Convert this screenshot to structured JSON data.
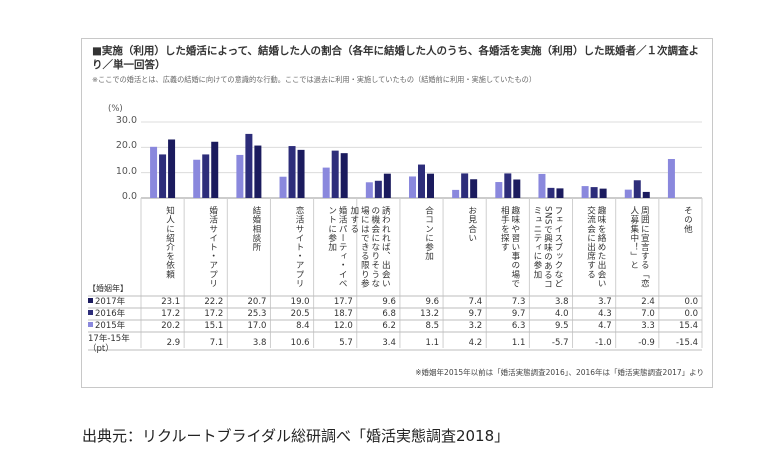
{
  "title": "■実施（利用）した婚活によって、結婚した人の割合（各年に結婚した人のうち、各婚活を実施（利用）した既婚者／１次調査より／単一回答）",
  "note": "※ここでの婚活とは、広義の結婚に向けての意識的な行動。ここでは過去に利用・実施していたもの（結婚前に利用・実施していたもの）",
  "unit_label": "(%)",
  "year_header": "【婚姻年】",
  "source_note": "※婚姻年2015年以前は「婚活実態調査2016」、2016年は「婚活実態調査2017」より",
  "caption": "出典元：リクルートブライダル総研調べ「婚活実態調査2018」",
  "colors": {
    "y2017": "#1b1b5e",
    "y2016": "#2d2d7a",
    "y2015": "#8a88dd"
  },
  "chart_data": {
    "type": "bar",
    "ylabel": "(%)",
    "ylim": [
      0,
      30
    ],
    "yticks": [
      "0.0",
      "10.0",
      "20.0",
      "30.0"
    ],
    "grid": true,
    "categories": [
      "知人に紹介を依頼",
      "婚活サイト・アプリ",
      "結婚相談所",
      "恋活サイト・アプリ",
      "婚活パーティ・イベントに参加",
      "誘われれば、出会いの機会になりそうな場にはできる限り参加する",
      "合コンに参加",
      "お見合い",
      "趣味や習い事の場で相手を探す",
      "フェイスブックなどSNSで興味のあるコミュニティに参加",
      "趣味を絡めた出会い交流会に出席する",
      "周囲に宣言する「恋人募集中！」と",
      "その他"
    ],
    "series": [
      {
        "name": "2015年",
        "values": [
          20.2,
          15.1,
          17.0,
          8.4,
          12.0,
          6.2,
          8.5,
          3.2,
          6.3,
          9.5,
          4.7,
          3.3,
          15.4
        ],
        "display": [
          "20.2",
          "15.1",
          "17.0",
          "8.4",
          "12.0",
          "6.2",
          "8.5",
          "3.2",
          "6.3",
          "9.5",
          "4.7",
          "3.3",
          "15.4"
        ]
      },
      {
        "name": "2016年",
        "values": [
          17.2,
          17.2,
          25.3,
          20.5,
          18.7,
          6.8,
          13.2,
          9.7,
          9.7,
          4.0,
          4.3,
          7.0,
          0.0
        ],
        "display": [
          "17.2",
          "17.2",
          "25.3",
          "20.5",
          "18.7",
          "6.8",
          "13.2",
          "9.7",
          "9.7",
          "4.0",
          "4.3",
          "7.0",
          "0.0"
        ]
      },
      {
        "name": "2017年",
        "values": [
          23.1,
          22.2,
          20.7,
          19.0,
          17.7,
          9.6,
          9.6,
          7.4,
          7.3,
          3.8,
          3.7,
          2.4,
          0.0
        ],
        "display": [
          "23.1",
          "22.2",
          "20.7",
          "19.0",
          "17.7",
          "9.6",
          "9.6",
          "7.4",
          "7.3",
          "3.8",
          "3.7",
          "2.4",
          "0.0"
        ]
      }
    ],
    "diff_label": "17年-15年\n（pt）",
    "diff": [
      "2.9",
      "7.1",
      "3.8",
      "10.6",
      "5.7",
      "3.4",
      "1.1",
      "4.2",
      "1.1",
      "-5.7",
      "-1.0",
      "-0.9",
      "-15.4"
    ]
  }
}
